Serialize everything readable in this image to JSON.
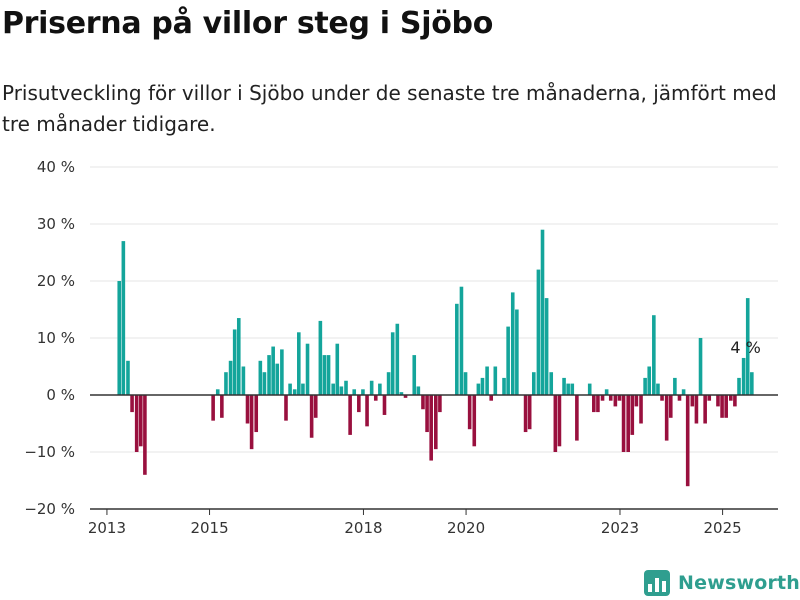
{
  "title": "Priserna på villor steg i Sjöbo",
  "subtitle": "Prisutveckling för villor i Sjöbo under de senaste tre månaderna, jämfört med tre månader tidigare.",
  "brand": {
    "name": "Newsworthy",
    "icon": "newsworthy-bar-chart-logo-icon"
  },
  "colors": {
    "positive": "#14a59b",
    "negative": "#99103e",
    "axis": "#333333",
    "grid": "#e6e6e6",
    "brand": "#2f9e8f"
  },
  "chart_data": {
    "type": "bar",
    "title": "",
    "xlabel": "",
    "ylabel": "",
    "ylim": [
      -20,
      40
    ],
    "xlim": [
      2012.67,
      2026.08
    ],
    "grid": "horizontal",
    "y_ticks": [
      {
        "value": 40,
        "label": "40 %"
      },
      {
        "value": 30,
        "label": "30 %"
      },
      {
        "value": 20,
        "label": "20 %"
      },
      {
        "value": 10,
        "label": "10 %"
      },
      {
        "value": 0,
        "label": "0 %"
      },
      {
        "value": -10,
        "label": "−10 %"
      },
      {
        "value": -20,
        "label": "−20 %"
      }
    ],
    "x_ticks": [
      {
        "value": 2013,
        "label": "2013"
      },
      {
        "value": 2015,
        "label": "2015"
      },
      {
        "value": 2018,
        "label": "2018"
      },
      {
        "value": 2020,
        "label": "2020"
      },
      {
        "value": 2023,
        "label": "2023"
      },
      {
        "value": 2025,
        "label": "2025"
      }
    ],
    "annotation": {
      "label": "4 %",
      "x": 2025.41,
      "value": 4
    },
    "series": [
      {
        "points": [
          [
            2013.24,
            20
          ],
          [
            2013.32,
            27
          ],
          [
            2013.41,
            6
          ],
          [
            2013.49,
            -3
          ],
          [
            2013.58,
            -10
          ],
          [
            2013.66,
            -9
          ],
          [
            2013.74,
            -14
          ],
          [
            2015.07,
            -4.5
          ],
          [
            2015.16,
            1
          ],
          [
            2015.24,
            -4
          ],
          [
            2015.32,
            4
          ],
          [
            2015.41,
            6
          ],
          [
            2015.49,
            11.5
          ],
          [
            2015.57,
            13.5
          ],
          [
            2015.66,
            5
          ],
          [
            2015.74,
            -5
          ],
          [
            2015.82,
            -9.5
          ],
          [
            2015.91,
            -6.5
          ],
          [
            2015.99,
            6
          ],
          [
            2016.07,
            4
          ],
          [
            2016.16,
            7
          ],
          [
            2016.24,
            8.5
          ],
          [
            2016.32,
            5.5
          ],
          [
            2016.41,
            8
          ],
          [
            2016.49,
            -4.5
          ],
          [
            2016.57,
            2
          ],
          [
            2016.66,
            1
          ],
          [
            2016.74,
            11
          ],
          [
            2016.82,
            2
          ],
          [
            2016.91,
            9
          ],
          [
            2016.99,
            -7.5
          ],
          [
            2017.07,
            -4
          ],
          [
            2017.16,
            13
          ],
          [
            2017.24,
            7
          ],
          [
            2017.32,
            7
          ],
          [
            2017.41,
            2
          ],
          [
            2017.49,
            9
          ],
          [
            2017.57,
            1.5
          ],
          [
            2017.66,
            2.5
          ],
          [
            2017.74,
            -7
          ],
          [
            2017.82,
            1
          ],
          [
            2017.91,
            -3
          ],
          [
            2017.99,
            1
          ],
          [
            2018.07,
            -5.5
          ],
          [
            2018.16,
            2.5
          ],
          [
            2018.24,
            -1
          ],
          [
            2018.32,
            2
          ],
          [
            2018.41,
            -3.5
          ],
          [
            2018.49,
            4
          ],
          [
            2018.57,
            11
          ],
          [
            2018.66,
            12.5
          ],
          [
            2018.74,
            0.5
          ],
          [
            2018.82,
            -0.5
          ],
          [
            2018.99,
            7
          ],
          [
            2019.07,
            1.5
          ],
          [
            2019.16,
            -2.5
          ],
          [
            2019.24,
            -6.5
          ],
          [
            2019.32,
            -11.5
          ],
          [
            2019.41,
            -9.5
          ],
          [
            2019.49,
            -3
          ],
          [
            2019.82,
            16
          ],
          [
            2019.91,
            19
          ],
          [
            2019.99,
            4
          ],
          [
            2020.07,
            -6
          ],
          [
            2020.16,
            -9
          ],
          [
            2020.24,
            2
          ],
          [
            2020.32,
            3
          ],
          [
            2020.41,
            5
          ],
          [
            2020.49,
            -1
          ],
          [
            2020.57,
            5
          ],
          [
            2020.74,
            3
          ],
          [
            2020.82,
            12
          ],
          [
            2020.91,
            18
          ],
          [
            2020.99,
            15
          ],
          [
            2021.16,
            -6.5
          ],
          [
            2021.24,
            -6
          ],
          [
            2021.32,
            4
          ],
          [
            2021.41,
            22
          ],
          [
            2021.49,
            29
          ],
          [
            2021.57,
            17
          ],
          [
            2021.66,
            4
          ],
          [
            2021.74,
            -10
          ],
          [
            2021.82,
            -9
          ],
          [
            2021.91,
            3
          ],
          [
            2021.99,
            2
          ],
          [
            2022.07,
            2
          ],
          [
            2022.16,
            -8
          ],
          [
            2022.41,
            2
          ],
          [
            2022.49,
            -3
          ],
          [
            2022.57,
            -3
          ],
          [
            2022.66,
            -1
          ],
          [
            2022.74,
            1
          ],
          [
            2022.82,
            -1
          ],
          [
            2022.91,
            -2
          ],
          [
            2022.99,
            -1
          ],
          [
            2023.07,
            -10
          ],
          [
            2023.16,
            -10
          ],
          [
            2023.24,
            -7
          ],
          [
            2023.32,
            -2
          ],
          [
            2023.41,
            -5
          ],
          [
            2023.49,
            3
          ],
          [
            2023.57,
            5
          ],
          [
            2023.66,
            14
          ],
          [
            2023.74,
            2
          ],
          [
            2023.82,
            -1
          ],
          [
            2023.91,
            -8
          ],
          [
            2023.99,
            -4
          ],
          [
            2024.07,
            3
          ],
          [
            2024.16,
            -1
          ],
          [
            2024.24,
            1
          ],
          [
            2024.32,
            -16
          ],
          [
            2024.41,
            -2
          ],
          [
            2024.49,
            -5
          ],
          [
            2024.57,
            10
          ],
          [
            2024.66,
            -5
          ],
          [
            2024.74,
            -1
          ],
          [
            2024.91,
            -2
          ],
          [
            2024.99,
            -4
          ],
          [
            2025.07,
            -4
          ],
          [
            2025.16,
            -1
          ],
          [
            2025.24,
            -2
          ],
          [
            2025.32,
            3
          ],
          [
            2025.41,
            6.5
          ],
          [
            2025.49,
            17
          ],
          [
            2025.57,
            4
          ]
        ]
      }
    ]
  }
}
